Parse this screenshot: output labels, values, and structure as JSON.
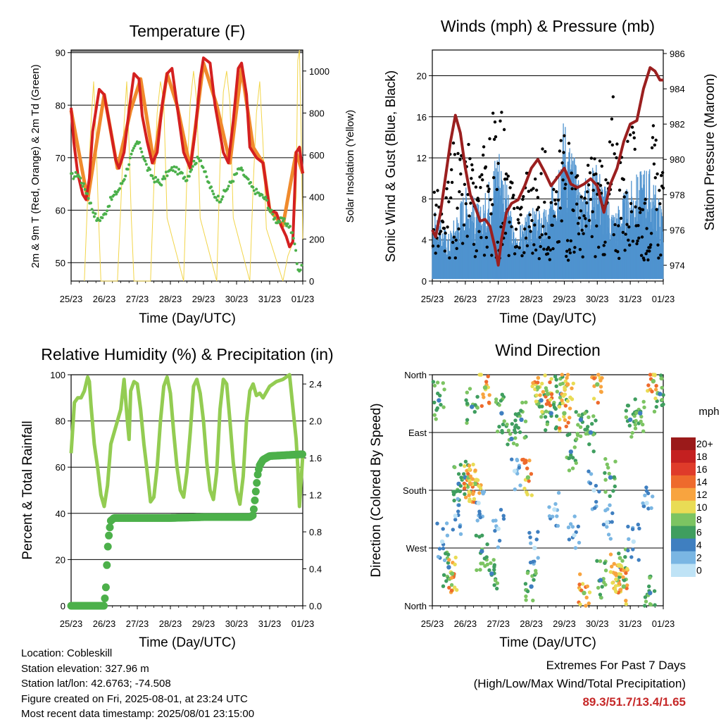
{
  "panels": {
    "temperature": {
      "title": "Temperature (F)",
      "ylabel_left": "2m & 9m T (Red, Orange) & 2m Td (Green)",
      "ylabel_right": "Solar Insolation (Yellow)",
      "xlabel": "Time (Day/UTC)"
    },
    "winds": {
      "title": "Winds (mph) & Pressure (mb)",
      "ylabel_left": "Sonic Wind & Gust (Blue, Black)",
      "ylabel_right": "Station Pressure (Maroon)",
      "xlabel": "Time (Day/UTC)"
    },
    "humidity": {
      "title": "Relative Humidity (%) & Precipitation (in)",
      "ylabel_left": "Percent & Total Rainfall",
      "xlabel": "Time (Day/UTC)"
    },
    "direction": {
      "title": "Wind Direction",
      "ylabel_left": "Direction (Colored By Speed)",
      "xlabel": "Time (Day/UTC)",
      "colorbar_title": "mph",
      "colorbar_labels": [
        "20+",
        "18",
        "16",
        "14",
        "12",
        "10",
        "8",
        "6",
        "4",
        "2",
        "0"
      ],
      "colorbar_colors": [
        "#9b1a1a",
        "#c42020",
        "#df3b2a",
        "#ee6a2c",
        "#f8a43f",
        "#e9dc55",
        "#7cc462",
        "#3f9e5f",
        "#3f7fc0",
        "#7ab6e3",
        "#bfe3f6"
      ]
    }
  },
  "info": {
    "location": "Location: Cobleskill",
    "elevation": "Station elevation: 327.96 m",
    "latlon": "Station lat/lon: 42.6763; -74.508",
    "created": "Figure created on Fri, 2025-08-01, at 23:24 UTC",
    "recent": "Most recent data timestamp: 2025/08/01 23:15:00"
  },
  "extremes": {
    "line1": "Extremes For Past 7 Days",
    "line2": "(High/Low/Max Wind/Total Precipitation)",
    "values": "89.3/51.7/13.4/1.65"
  },
  "chart_data": [
    {
      "type": "line",
      "title": "Temperature (F)",
      "xlabel": "Time (Day/UTC)",
      "ylabel": "2m & 9m T (Red, Orange) & 2m Td (Green)",
      "y2label": "Solar Insolation (Yellow)",
      "x_ticks": [
        "25/23",
        "26/23",
        "27/23",
        "28/23",
        "29/23",
        "30/23",
        "31/23",
        "01/23"
      ],
      "xlim": [
        0,
        7
      ],
      "ylim": [
        46.5,
        90.5
      ],
      "y_ticks": [
        50,
        60,
        70,
        80,
        90
      ],
      "y2lim": [
        0,
        1100
      ],
      "y2_ticks": [
        0,
        200,
        400,
        600,
        800,
        1000
      ],
      "grid": "horizontal",
      "series": [
        {
          "color": "#d42020",
          "x": [
            0,
            0.08,
            0.2,
            0.35,
            0.45,
            0.55,
            0.65,
            0.85,
            1.0,
            1.2,
            1.35,
            1.45,
            1.6,
            1.75,
            1.9,
            2.05,
            2.15,
            2.3,
            2.45,
            2.6,
            2.75,
            2.9,
            3.05,
            3.2,
            3.4,
            3.6,
            3.75,
            3.9,
            4.0,
            4.2,
            4.35,
            4.6,
            4.75,
            4.9,
            5.05,
            5.15,
            5.3,
            5.4,
            5.6,
            5.8,
            6.0,
            6.2,
            6.35,
            6.5,
            6.6,
            6.7,
            6.8,
            6.9,
            7.0
          ],
          "y": [
            79.5,
            73,
            67,
            63,
            62,
            66,
            75,
            83,
            82,
            75,
            69.5,
            68,
            71,
            79,
            86,
            85,
            78,
            73,
            69,
            71,
            80,
            86,
            87,
            80,
            71,
            68,
            75,
            85,
            89,
            88,
            80,
            71,
            69,
            77,
            87,
            88,
            82,
            72,
            70,
            69,
            60,
            59.5,
            57,
            55,
            53,
            54,
            71,
            72,
            67
          ]
        },
        {
          "color": "#f08a2c",
          "x": [
            0,
            0.5,
            1.0,
            1.4,
            1.8,
            2.1,
            2.5,
            2.9,
            3.2,
            3.6,
            4.0,
            4.4,
            4.8,
            5.15,
            5.5,
            5.8,
            6.0,
            6.4,
            6.8,
            7.0
          ],
          "y": [
            79,
            62,
            82,
            68,
            79,
            85,
            69,
            86,
            80,
            68,
            88,
            80,
            69,
            87,
            72,
            69,
            60,
            57,
            71,
            67
          ]
        },
        {
          "color": "#4bb04b",
          "x": [
            0,
            0.1,
            0.2,
            0.35,
            0.5,
            0.65,
            0.8,
            1.0,
            1.2,
            1.45,
            1.6,
            1.8,
            2.0,
            2.1,
            2.3,
            2.5,
            2.7,
            2.9,
            3.1,
            3.3,
            3.5,
            3.7,
            3.9,
            4.1,
            4.3,
            4.5,
            4.7,
            4.9,
            5.1,
            5.3,
            5.5,
            5.7,
            5.9,
            6.0,
            6.2,
            6.4,
            6.6,
            6.75,
            6.85,
            6.95,
            7.0
          ],
          "y": [
            66.5,
            66.5,
            67,
            65,
            63,
            60,
            58,
            59,
            62,
            64,
            66,
            70,
            73,
            72,
            68,
            66,
            65,
            67,
            68,
            67,
            66,
            69,
            70,
            66,
            63,
            62,
            64,
            66,
            68,
            66,
            64,
            63,
            62,
            60,
            58,
            58,
            57,
            54,
            49,
            48,
            53
          ]
        },
        {
          "color": "#f2d54a",
          "x": [
            0.4,
            0.5,
            0.6,
            0.68,
            0.75,
            0.82,
            0.9,
            1.4,
            1.5,
            1.6,
            1.68,
            1.75,
            1.82,
            1.9,
            2.4,
            2.5,
            2.6,
            2.7,
            2.8,
            2.9,
            3.4,
            3.5,
            3.6,
            3.7,
            3.8,
            3.9,
            4.4,
            4.5,
            4.6,
            4.7,
            4.8,
            4.9,
            5.4,
            5.5,
            5.6,
            5.7,
            5.8,
            5.9,
            6.4,
            6.55,
            6.7,
            6.8,
            6.85,
            6.9,
            6.95,
            7.0
          ],
          "y": [
            0,
            400,
            750,
            950,
            700,
            350,
            0,
            0,
            350,
            750,
            950,
            650,
            300,
            0,
            0,
            450,
            800,
            950,
            850,
            300,
            0,
            500,
            850,
            1000,
            850,
            300,
            0,
            550,
            900,
            1000,
            850,
            300,
            0,
            450,
            800,
            950,
            650,
            250,
            0,
            120,
            180,
            400,
            1050,
            1100,
            700,
            200
          ]
        }
      ]
    },
    {
      "type": "scatter",
      "title": "Winds (mph) & Pressure (mb)",
      "xlabel": "Time (Day/UTC)",
      "ylabel": "Sonic Wind & Gust (Blue, Black)",
      "y2label": "Station Pressure (Maroon)",
      "x_ticks": [
        "25/23",
        "26/23",
        "27/23",
        "28/23",
        "29/23",
        "30/23",
        "31/23",
        "01/23"
      ],
      "xlim": [
        0,
        7
      ],
      "ylim": [
        0,
        22.5
      ],
      "y_ticks": [
        0,
        4,
        8,
        12,
        16,
        20
      ],
      "y2lim": [
        973.1,
        986.2
      ],
      "y2_ticks": [
        974,
        976,
        978,
        980,
        982,
        984,
        986
      ],
      "grid": "horizontal",
      "series": [
        {
          "name": "pressure",
          "color": "#9b1f1f",
          "x": [
            0,
            0.1,
            0.25,
            0.4,
            0.55,
            0.7,
            0.85,
            1.0,
            1.15,
            1.3,
            1.45,
            1.6,
            1.75,
            1.9,
            2.0,
            2.1,
            2.25,
            2.4,
            2.6,
            2.8,
            3.0,
            3.2,
            3.4,
            3.6,
            3.8,
            4.0,
            4.2,
            4.4,
            4.6,
            4.8,
            5.0,
            5.2,
            5.4,
            5.6,
            5.8,
            6.0,
            6.2,
            6.4,
            6.6,
            6.75,
            6.9,
            7.0
          ],
          "y": [
            976.0,
            975.6,
            977.0,
            979.0,
            981.0,
            982.5,
            981.5,
            979.5,
            978.0,
            977.3,
            976.5,
            976.6,
            976.2,
            975.0,
            974.0,
            975.5,
            977.0,
            977.5,
            977.7,
            978.5,
            979.5,
            980.0,
            979.3,
            978.5,
            979.0,
            979.5,
            978.6,
            978.4,
            978.6,
            978.9,
            978.5,
            977.0,
            978.6,
            979.5,
            981.0,
            982.0,
            982.2,
            984.0,
            985.2,
            985.0,
            984.5,
            984.5
          ]
        },
        {
          "name": "wind",
          "color": "#4f93cf",
          "x": [
            0,
            0.5,
            1.0,
            1.5,
            2.0,
            2.5,
            3.0,
            3.5,
            4.0,
            4.5,
            5.0,
            5.5,
            6.0,
            6.5,
            7.0
          ],
          "y": [
            3,
            2,
            4,
            3,
            6,
            2,
            3,
            3,
            7,
            4,
            5,
            3,
            4,
            5,
            3
          ]
        },
        {
          "name": "gust",
          "color": "#000000",
          "x": [
            0.1,
            0.35,
            0.6,
            0.85,
            1.1,
            1.3,
            1.6,
            1.85,
            2.05,
            2.3,
            2.6,
            2.85,
            3.1,
            3.4,
            3.6,
            3.8,
            4.0,
            4.3,
            4.6,
            4.8,
            5.0,
            5.25,
            5.5,
            5.75,
            6.0,
            6.25,
            6.5,
            6.7,
            6.9
          ],
          "y": [
            10,
            6,
            15,
            12,
            14,
            9,
            15,
            17,
            20,
            11,
            8,
            12,
            10,
            14,
            9,
            11,
            19,
            12,
            8,
            14,
            13,
            10,
            20,
            12,
            17,
            11,
            8,
            16,
            11
          ]
        }
      ]
    },
    {
      "type": "line",
      "title": "Relative Humidity (%) & Precipitation (in)",
      "xlabel": "Time (Day/UTC)",
      "ylabel": "Percent & Total Rainfall",
      "x_ticks": [
        "25/23",
        "26/23",
        "27/23",
        "28/23",
        "29/23",
        "30/23",
        "31/23",
        "01/23"
      ],
      "xlim": [
        0,
        7
      ],
      "ylim": [
        0,
        100
      ],
      "y_ticks": [
        0,
        20,
        40,
        60,
        80,
        100
      ],
      "y2lim": [
        0,
        2.5
      ],
      "y2_ticks": [
        0.0,
        0.4,
        0.8,
        1.2,
        1.6,
        2.0,
        2.4
      ],
      "grid": "horizontal",
      "series": [
        {
          "color": "#93cc52",
          "x": [
            0,
            0.1,
            0.2,
            0.3,
            0.4,
            0.5,
            0.55,
            0.6,
            0.7,
            0.8,
            0.9,
            1.0,
            1.1,
            1.2,
            1.3,
            1.4,
            1.5,
            1.6,
            1.7,
            1.75,
            1.8,
            1.9,
            2.0,
            2.1,
            2.2,
            2.3,
            2.4,
            2.5,
            2.6,
            2.7,
            2.8,
            2.9,
            3.0,
            3.1,
            3.2,
            3.3,
            3.4,
            3.5,
            3.6,
            3.7,
            3.8,
            3.9,
            4.0,
            4.1,
            4.2,
            4.3,
            4.4,
            4.5,
            4.6,
            4.7,
            4.8,
            4.9,
            5.0,
            5.1,
            5.2,
            5.3,
            5.4,
            5.5,
            5.6,
            5.7,
            5.8,
            6.0,
            6.2,
            6.4,
            6.6,
            6.8,
            6.85,
            6.9,
            7.0
          ],
          "y": [
            66,
            88,
            90,
            90,
            93,
            99,
            97,
            87,
            70,
            60,
            48,
            43,
            52,
            70,
            75,
            80,
            85,
            98,
            80,
            72,
            93,
            97,
            96,
            85,
            70,
            58,
            45,
            47,
            60,
            80,
            95,
            99,
            92,
            75,
            60,
            50,
            47,
            58,
            75,
            95,
            98,
            92,
            80,
            62,
            50,
            46,
            58,
            85,
            98,
            96,
            80,
            62,
            50,
            44,
            56,
            80,
            93,
            96,
            91,
            92,
            90,
            95,
            97,
            98,
            100,
            72,
            60,
            43,
            65
          ]
        },
        {
          "color": "#4cb04a",
          "x": [
            0,
            0.5,
            1.0,
            1.05,
            1.1,
            1.15,
            1.2,
            1.3,
            1.5,
            2.0,
            3.0,
            4.0,
            5.0,
            5.4,
            5.5,
            5.6,
            5.65,
            5.7,
            5.8,
            6.0,
            6.5,
            7.0
          ],
          "y": [
            0,
            0,
            0,
            0.2,
            0.6,
            0.8,
            0.92,
            0.95,
            0.95,
            0.95,
            0.95,
            0.96,
            0.96,
            0.96,
            0.98,
            1.3,
            1.45,
            1.52,
            1.58,
            1.62,
            1.63,
            1.64
          ]
        }
      ]
    },
    {
      "type": "scatter",
      "title": "Wind Direction",
      "xlabel": "Time (Day/UTC)",
      "ylabel": "Direction (Colored By Speed)",
      "x_ticks": [
        "25/23",
        "26/23",
        "27/23",
        "28/23",
        "29/23",
        "30/23",
        "31/23",
        "01/23"
      ],
      "xlim": [
        0,
        7
      ],
      "y_ticks": [
        "North",
        "West",
        "South",
        "East",
        "North"
      ],
      "ylim": [
        0,
        360
      ],
      "grid": "horizontal",
      "legend_title": "mph",
      "series": [
        {
          "color": "#3f7fc0",
          "x": [
            0.2,
            0.5,
            0.8,
            1.0,
            1.2,
            1.5,
            1.8,
            2.1,
            2.4,
            2.7,
            3.0,
            3.3,
            3.6,
            3.9,
            4.2,
            4.5,
            4.8,
            5.1,
            5.4,
            5.7,
            6.0,
            6.3,
            6.6,
            6.9
          ],
          "y": [
            320,
            60,
            190,
            200,
            310,
            85,
            50,
            300,
            260,
            290,
            30,
            320,
            300,
            330,
            240,
            290,
            270,
            40,
            200,
            60,
            290,
            300,
            20,
            330
          ]
        },
        {
          "color": "#7cc462",
          "x": [
            0.6,
            1.1,
            1.3,
            1.6,
            2.9,
            3.2,
            3.5,
            4.0,
            4.6,
            5.0,
            5.6,
            5.8,
            6.7
          ],
          "y": [
            50,
            200,
            190,
            340,
            200,
            340,
            330,
            300,
            20,
            345,
            40,
            30,
            350
          ]
        },
        {
          "color": "#f8a43f",
          "x": [
            1.15,
            4.1,
            5.55
          ],
          "y": [
            190,
            345,
            50
          ]
        },
        {
          "color": "#bfe3f6",
          "x": [
            0.3,
            0.7,
            1.4,
            2.0,
            2.5,
            3.1,
            3.7,
            4.3,
            4.9,
            5.3,
            6.1,
            6.5
          ],
          "y": [
            100,
            140,
            160,
            120,
            210,
            90,
            150,
            110,
            180,
            130,
            100,
            160
          ]
        }
      ]
    }
  ]
}
